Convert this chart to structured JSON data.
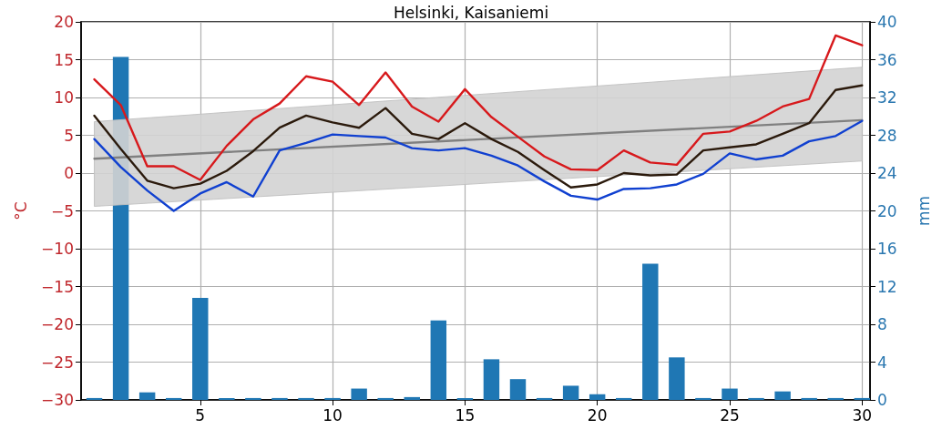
{
  "chart_data": {
    "type": "line",
    "title": "Helsinki, Kaisaniemi",
    "ylabel": "°C",
    "y2label": "mm",
    "x": [
      1,
      2,
      3,
      4,
      5,
      6,
      7,
      8,
      9,
      10,
      11,
      12,
      13,
      14,
      15,
      16,
      17,
      18,
      19,
      20,
      21,
      22,
      23,
      24,
      25,
      26,
      27,
      28,
      29,
      30
    ],
    "series": [
      {
        "type": "bar",
        "axis": "y2",
        "color": "#1f77b4",
        "values": [
          0.2,
          36.3,
          0.8,
          0.2,
          10.8,
          0.2,
          0.2,
          0.2,
          0.2,
          0.2,
          1.2,
          0.2,
          0.3,
          8.4,
          0.2,
          4.3,
          2.2,
          0.2,
          1.5,
          0.6,
          0.2,
          14.4,
          4.5,
          0.2,
          1.2,
          0.2,
          0.9,
          0.2,
          0.2,
          0.2
        ]
      },
      {
        "color": "#808080",
        "x": [
          1,
          30
        ],
        "values": [
          1.9,
          7.0
        ],
        "lower": [
          -4.4,
          1.6
        ],
        "upper": [
          6.8,
          14.0
        ]
      },
      {
        "color": "#d7191c",
        "values": [
          12.4,
          9.0,
          0.9,
          0.9,
          -0.9,
          3.6,
          7.1,
          9.2,
          12.8,
          12.1,
          9.0,
          13.3,
          8.8,
          6.8,
          11.1,
          7.4,
          4.8,
          2.2,
          0.5,
          0.4,
          3.0,
          1.4,
          1.1,
          5.2,
          5.5,
          6.9,
          8.8,
          9.8,
          18.2,
          16.9
        ]
      },
      {
        "color": "#2b1a0c",
        "values": [
          7.6,
          3.2,
          -1.0,
          -2.0,
          -1.4,
          0.3,
          2.9,
          6.0,
          7.6,
          6.7,
          6.0,
          8.6,
          5.2,
          4.5,
          6.6,
          4.5,
          2.8,
          0.4,
          -1.9,
          -1.5,
          0.0,
          -0.3,
          -0.2,
          3.0,
          3.4,
          3.8,
          5.2,
          6.6,
          11.0,
          11.6
        ]
      },
      {
        "color": "#1040d0",
        "values": [
          4.5,
          0.8,
          -2.3,
          -5.0,
          -2.7,
          -1.2,
          -3.1,
          3.0,
          4.0,
          5.1,
          4.9,
          4.7,
          3.3,
          3.0,
          3.3,
          2.3,
          1.0,
          -1.1,
          -3.0,
          -3.5,
          -2.1,
          -2.0,
          -1.5,
          -0.1,
          2.6,
          1.8,
          2.3,
          4.2,
          4.9,
          6.9
        ]
      }
    ],
    "xlim": [
      0.5,
      30.3
    ],
    "xticks": [
      5,
      10,
      15,
      20,
      25,
      30
    ],
    "ylim": [
      -30,
      20
    ],
    "yticks": [
      -30,
      -25,
      -20,
      -15,
      -10,
      -5,
      0,
      5,
      10,
      15,
      20
    ],
    "y2lim": [
      0,
      40
    ],
    "y2ticks": [
      0,
      4,
      8,
      12,
      16,
      20,
      24,
      28,
      32,
      36,
      40
    ],
    "grid": true,
    "marker": "none",
    "line_style": "solid"
  }
}
